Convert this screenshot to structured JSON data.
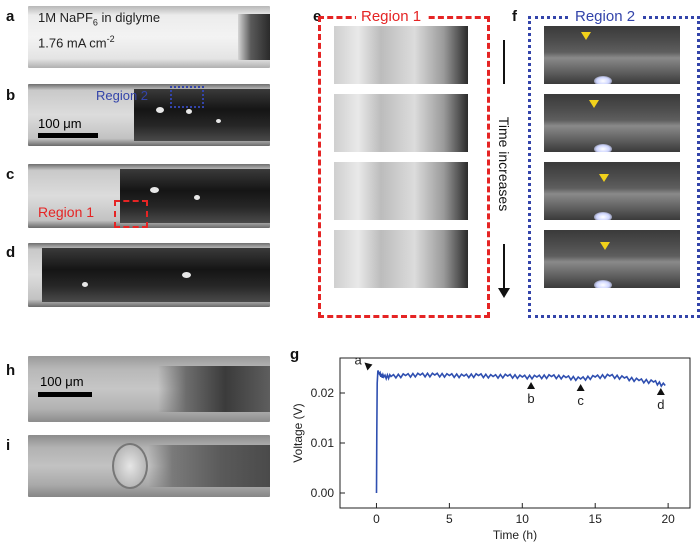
{
  "panel_labels": {
    "a": "a",
    "b": "b",
    "c": "c",
    "d": "d",
    "e": "e",
    "f": "f",
    "g": "g",
    "h": "h",
    "i": "i"
  },
  "panel_a": {
    "line1": "1M NaPF",
    "line1_sub": "6",
    "line1_tail": " in diglyme",
    "line2": "1.76 mA cm",
    "line2_sup": "-2"
  },
  "panel_b": {
    "region_label": "Region 2",
    "scale_label": "100 μm"
  },
  "panel_c": {
    "region_label": "Region 1"
  },
  "panel_e": {
    "title": "Region 1"
  },
  "panel_f": {
    "title": "Region 2",
    "arrow_label": "Time increases"
  },
  "panel_h": {
    "scale_label": "100 μm"
  },
  "colors": {
    "red": "#e52424",
    "blue": "#3344aa",
    "line": "#2f4fb0",
    "marker": "#f2d21b"
  },
  "chart_data": {
    "type": "line",
    "title": "",
    "xlabel": "Time (h)",
    "ylabel": "Voltage (V)",
    "xlim": [
      -2.5,
      21.5
    ],
    "ylim": [
      -0.003,
      0.027
    ],
    "xticks": [
      0,
      5,
      10,
      15,
      20
    ],
    "yticks": [
      0.0,
      0.01,
      0.02
    ],
    "ytick_labels": [
      "0.00",
      "0.01",
      "0.02"
    ],
    "series": [
      {
        "values": [
          [
            0.0,
            0.0
          ],
          [
            0.02,
            0.012
          ],
          [
            0.05,
            0.022
          ],
          [
            0.1,
            0.0245
          ],
          [
            0.2,
            0.0238
          ],
          [
            0.5,
            0.0232
          ],
          [
            1.0,
            0.0233
          ],
          [
            2.0,
            0.0235
          ],
          [
            3.0,
            0.0236
          ],
          [
            4.0,
            0.0236
          ],
          [
            5.0,
            0.0235
          ],
          [
            6.0,
            0.0234
          ],
          [
            7.0,
            0.0235
          ],
          [
            8.0,
            0.0233
          ],
          [
            9.0,
            0.0234
          ],
          [
            10.0,
            0.0232
          ],
          [
            11.0,
            0.0232
          ],
          [
            12.0,
            0.0233
          ],
          [
            13.0,
            0.0231
          ],
          [
            14.0,
            0.0228
          ],
          [
            15.0,
            0.0232
          ],
          [
            16.0,
            0.0234
          ],
          [
            17.0,
            0.023
          ],
          [
            18.0,
            0.0225
          ],
          [
            19.0,
            0.0222
          ],
          [
            19.8,
            0.0215
          ]
        ]
      }
    ],
    "annotations": [
      {
        "label": "a",
        "x": 0.0,
        "y": 0.0245,
        "side": "left"
      },
      {
        "label": "b",
        "x": 10.6,
        "y": 0.0228,
        "side": "below"
      },
      {
        "label": "c",
        "x": 14.0,
        "y": 0.0224,
        "side": "below"
      },
      {
        "label": "d",
        "x": 19.5,
        "y": 0.0216,
        "side": "below"
      }
    ],
    "grid": false
  }
}
